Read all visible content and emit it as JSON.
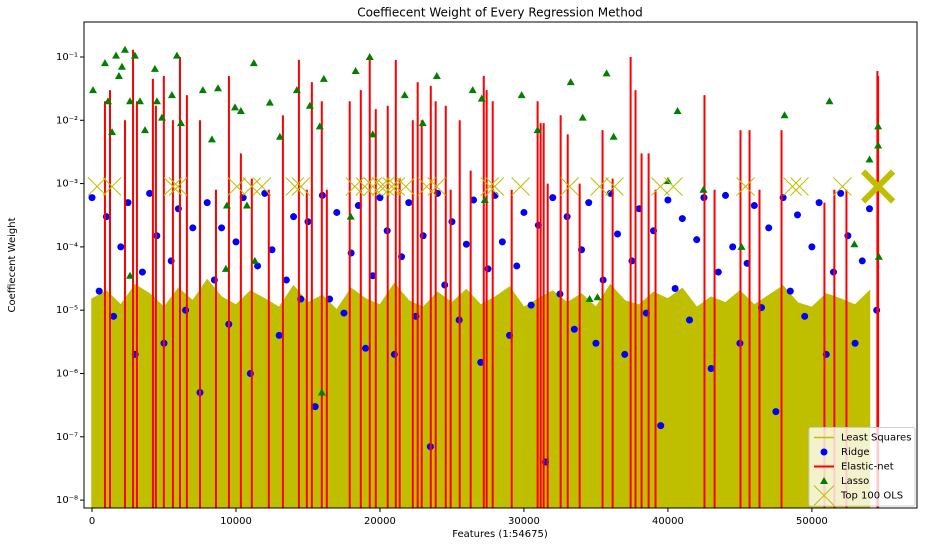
{
  "chart_data": {
    "type": "combo",
    "title": "Coeffiecent Weight of Every Regression Method",
    "x_label": "Features (1:54675)",
    "y_label": "Coeffiecent Weight",
    "xlim": [
      -556,
      57300
    ],
    "xticks": [
      0,
      10000,
      20000,
      30000,
      40000,
      50000
    ],
    "ylim": [
      7.5e-09,
      0.357
    ],
    "y_scale": "log",
    "yticks": [
      {
        "value": 1e-08,
        "label": "10⁻⁸"
      },
      {
        "value": 1e-07,
        "label": "10⁻⁷"
      },
      {
        "value": 1e-06,
        "label": "10⁻⁶"
      },
      {
        "value": 1e-05,
        "label": "10⁻⁵"
      },
      {
        "value": 0.0001,
        "label": "10⁻⁴"
      },
      {
        "value": 0.001,
        "label": "10⁻³"
      },
      {
        "value": 0.01,
        "label": "10⁻²"
      },
      {
        "value": 0.1,
        "label": "10⁻¹"
      }
    ],
    "legend": "lower right",
    "series": [
      {
        "name": "Least Squares",
        "kind": "area",
        "color": "#bfbf00",
        "x": [
          0,
          1000,
          2000,
          3000,
          4000,
          5000,
          6000,
          7000,
          8000,
          9000,
          10000,
          11000,
          12000,
          13000,
          14000,
          15000,
          16000,
          17000,
          18000,
          19000,
          20000,
          21000,
          22000,
          23000,
          24000,
          25000,
          26000,
          27000,
          28000,
          29000,
          30000,
          31000,
          32000,
          33000,
          34000,
          35000,
          36000,
          37000,
          38000,
          39000,
          40000,
          41000,
          42000,
          43000,
          44000,
          45000,
          46000,
          47000,
          48000,
          49000,
          50000,
          51000,
          52000,
          53000,
          54000
        ],
        "values": [
          1.5e-05,
          2e-05,
          1.2e-05,
          2.5e-05,
          1.8e-05,
          1.1e-05,
          2.2e-05,
          1.4e-05,
          3e-05,
          1.6e-05,
          1.2e-05,
          2e-05,
          1.5e-05,
          1.1e-05,
          2.4e-05,
          1.3e-05,
          1.7e-05,
          1e-05,
          2.2e-05,
          1.5e-05,
          1.2e-05,
          2.6e-05,
          1.4e-05,
          1.1e-05,
          1.9e-05,
          1.3e-05,
          2.1e-05,
          1.2e-05,
          1.6e-05,
          2.3e-05,
          1.1e-05,
          1.5e-05,
          2e-05,
          1.3e-05,
          1.8e-05,
          1.1e-05,
          2.5e-05,
          1.4e-05,
          1.2e-05,
          1.9e-05,
          1.5e-05,
          2.2e-05,
          1.1e-05,
          1.6e-05,
          1.3e-05,
          2e-05,
          1.2e-05,
          1.7e-05,
          2.4e-05,
          1.3e-05,
          1.1e-05,
          1.8e-05,
          1.5e-05,
          1.2e-05,
          2e-05
        ]
      },
      {
        "name": "Ridge",
        "kind": "scatter",
        "marker": "o",
        "color": "#0000ff",
        "x": [
          0,
          500,
          1000,
          1500,
          2000,
          2500,
          3000,
          3500,
          4000,
          4500,
          5000,
          5500,
          6000,
          6500,
          7000,
          7500,
          8000,
          8500,
          9000,
          9500,
          10000,
          10500,
          11000,
          11500,
          12000,
          12500,
          13000,
          13500,
          14000,
          14500,
          15000,
          15500,
          16000,
          16500,
          17000,
          17500,
          18000,
          18500,
          19000,
          19500,
          20000,
          20500,
          21000,
          21500,
          22000,
          22500,
          23000,
          23500,
          24000,
          24500,
          25000,
          25500,
          26000,
          26500,
          27000,
          27500,
          28000,
          28500,
          29000,
          29500,
          30000,
          30500,
          31000,
          31500,
          32000,
          32500,
          33000,
          33500,
          34000,
          34500,
          35000,
          35500,
          36000,
          36500,
          37000,
          37500,
          38000,
          38500,
          39000,
          39500,
          40000,
          40500,
          41000,
          41500,
          42000,
          42500,
          43000,
          43500,
          44000,
          44500,
          45000,
          45500,
          46000,
          46500,
          47000,
          47500,
          48000,
          48500,
          49000,
          49500,
          50000,
          50500,
          51000,
          51500,
          52000,
          52500,
          53000,
          53500,
          54000,
          54500
        ],
        "values": [
          0.0006,
          2e-05,
          0.0003,
          8e-06,
          0.0001,
          0.0005,
          2e-06,
          4e-05,
          0.0007,
          0.00015,
          3e-06,
          6e-05,
          0.0004,
          1e-05,
          0.0002,
          5e-07,
          0.0005,
          3e-05,
          0.0002,
          6e-06,
          0.00012,
          0.0006,
          1e-06,
          5e-05,
          0.0007,
          9e-05,
          4e-06,
          3e-05,
          0.0003,
          1.5e-05,
          0.00025,
          3e-07,
          0.00065,
          1.5e-05,
          0.00035,
          9e-06,
          8e-05,
          0.00045,
          2.5e-06,
          3.5e-05,
          0.0006,
          0.00018,
          2e-06,
          7e-05,
          0.0005,
          8e-06,
          0.00015,
          7e-08,
          0.0007,
          2.5e-05,
          0.00025,
          7e-06,
          0.00011,
          0.00055,
          1.5e-06,
          4.5e-05,
          0.00065,
          0.00012,
          4e-06,
          5e-05,
          0.00035,
          1.2e-05,
          0.00022,
          4e-08,
          0.0006,
          1.8e-05,
          0.0003,
          5e-06,
          9e-05,
          0.0005,
          3e-06,
          3e-05,
          0.0007,
          0.00016,
          2e-06,
          6e-05,
          0.0004,
          9e-06,
          0.00018,
          1.5e-07,
          0.00055,
          2.2e-05,
          0.00028,
          7e-06,
          0.00013,
          0.0006,
          1.2e-06,
          4e-05,
          0.00065,
          0.0001,
          3e-06,
          5.5e-05,
          0.00045,
          1.1e-05,
          0.0002,
          2.5e-07,
          0.0006,
          2e-05,
          0.00032,
          8e-06,
          0.0001,
          0.0005,
          2e-06,
          4e-05,
          0.0007,
          0.00015,
          3e-06,
          6e-05,
          0.0004,
          1e-05
        ]
      },
      {
        "name": "Elastic-net",
        "kind": "stem",
        "color": "#ff0000",
        "x": [
          900,
          1250,
          2290,
          2850,
          3120,
          4230,
          4440,
          4990,
          5620,
          6110,
          6590,
          7500,
          8610,
          9510,
          10340,
          11100,
          12280,
          13260,
          14370,
          14920,
          15270,
          15960,
          16310,
          17900,
          18670,
          19290,
          19710,
          20540,
          21100,
          21370,
          22280,
          22620,
          22900,
          23530,
          23870,
          24570,
          24910,
          25540,
          26300,
          27210,
          27410,
          27830,
          29150,
          30950,
          31160,
          31370,
          31650,
          32550,
          33040,
          33870,
          35460,
          36160,
          37410,
          37750,
          38170,
          38660,
          39140,
          42540,
          43240,
          45040,
          45670,
          46360,
          47890,
          50870,
          51560,
          52400,
          54550,
          54600
        ],
        "values": [
          0.02,
          0.03,
          0.01,
          0.13,
          0.02,
          0.045,
          0.017,
          0.05,
          0.01,
          0.1,
          0.025,
          0.01,
          0.0008,
          0.05,
          0.003,
          0.0012,
          0.0008,
          0.012,
          0.09,
          0.0008,
          0.04,
          0.02,
          0.0008,
          0.02,
          0.03,
          0.09,
          0.015,
          0.017,
          0.09,
          0.0012,
          0.01,
          0.04,
          0.01,
          0.035,
          0.02,
          0.017,
          0.0008,
          0.01,
          0.0016,
          0.05,
          0.03,
          0.02,
          0.0008,
          0.02,
          0.009,
          0.009,
          0.001,
          0.012,
          0.006,
          0.001,
          0.007,
          0.0012,
          0.1,
          0.03,
          0.003,
          0.003,
          0.0008,
          0.025,
          0.0008,
          0.007,
          0.007,
          0.0008,
          0.007,
          0.0005,
          0.0008,
          0.0008,
          0.06,
          0.05
        ]
      },
      {
        "name": "Lasso",
        "kind": "scatter",
        "marker": "^",
        "color": "#008000",
        "x": [
          70,
          900,
          1110,
          1390,
          1670,
          1870,
          2080,
          2290,
          2640,
          2980,
          3330,
          3680,
          4370,
          4510,
          4860,
          5550,
          5900,
          6180,
          7700,
          8330,
          8750,
          9370,
          9930,
          10340,
          10760,
          11240,
          12350,
          13050,
          14230,
          15130,
          15820,
          16100,
          17970,
          18310,
          19290,
          19500,
          21720,
          22970,
          23950,
          26440,
          27070,
          27280,
          29840,
          30950,
          33250,
          34080,
          35110,
          35740,
          36230,
          40000,
          40670,
          42470,
          45110,
          48100,
          51220,
          52950,
          54000,
          54600,
          54600,
          54650,
          15960,
          2640,
          9300,
          11310,
          34560
        ],
        "values": [
          0.03,
          0.08,
          0.02,
          0.0065,
          0.105,
          0.05,
          0.07,
          0.13,
          0.02,
          0.105,
          0.02,
          0.007,
          0.065,
          0.02,
          0.011,
          0.025,
          0.105,
          0.009,
          0.03,
          0.005,
          0.032,
          0.00045,
          0.016,
          0.014,
          0.00045,
          0.08,
          0.019,
          0.0055,
          0.03,
          0.017,
          0.008,
          0.045,
          0.0003,
          0.06,
          0.1,
          0.006,
          0.025,
          0.009,
          0.05,
          0.03,
          0.022,
          0.00055,
          0.025,
          0.007,
          0.04,
          0.011,
          1.6e-05,
          0.055,
          0.0055,
          0.0011,
          0.014,
          0.0008,
          0.0001,
          0.012,
          0.02,
          0.00011,
          0.0024,
          0.008,
          0.004,
          7e-05,
          5e-07,
          3.5e-05,
          4.5e-05,
          6e-05,
          1.5e-05
        ]
      },
      {
        "name": "Top 100 OLS",
        "kind": "scatter",
        "marker": "x",
        "color": "#bfbf00",
        "x": [
          350,
          1390,
          5620,
          5970,
          10060,
          11100,
          11800,
          14090,
          14510,
          18250,
          18950,
          19500,
          20060,
          20330,
          20820,
          21100,
          21790,
          23250,
          23940,
          27620,
          27970,
          29770,
          33170,
          35250,
          36290,
          39480,
          40380,
          45390,
          48650,
          49140,
          52120,
          54600
        ],
        "values": [
          0.0009,
          0.0009,
          0.0009,
          0.0009,
          0.0009,
          0.0009,
          0.0009,
          0.0009,
          0.0009,
          0.0009,
          0.0009,
          0.0009,
          0.0009,
          0.0009,
          0.0009,
          0.0009,
          0.0009,
          0.0009,
          0.0009,
          0.0009,
          0.0009,
          0.0009,
          0.0009,
          0.0009,
          0.0009,
          0.0009,
          0.0009,
          0.0009,
          0.0009,
          0.0009,
          0.0009,
          0.0009
        ],
        "sizes": [
          18,
          18,
          18,
          18,
          18,
          18,
          18,
          18,
          18,
          18,
          18,
          18,
          18,
          18,
          18,
          18,
          18,
          18,
          18,
          18,
          18,
          18,
          18,
          18,
          18,
          18,
          18,
          18,
          18,
          18,
          18,
          30
        ]
      }
    ]
  }
}
